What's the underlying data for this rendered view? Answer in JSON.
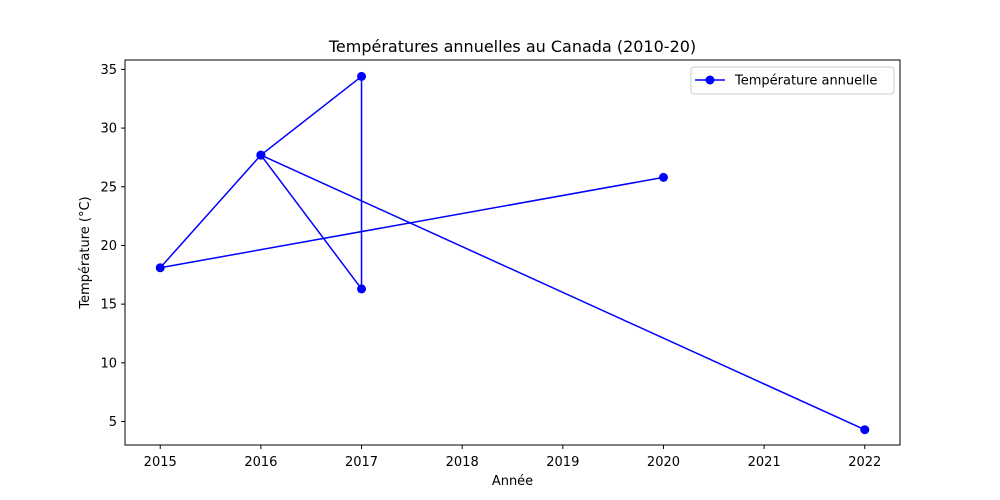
{
  "chart_data": {
    "type": "line",
    "title": "Températures annuelles au Canada (2010-20)",
    "xlabel": "Année",
    "ylabel": "Température (°C)",
    "xlim": [
      2014.65,
      2022.35
    ],
    "ylim": [
      3.0,
      35.8
    ],
    "xticks": [
      2015,
      2016,
      2017,
      2018,
      2019,
      2020,
      2021,
      2022
    ],
    "yticks": [
      5,
      10,
      15,
      20,
      25,
      30,
      35
    ],
    "grid": false,
    "legend_position": "top-right",
    "series": [
      {
        "name": "Température annuelle",
        "color": "#0000ff",
        "marker": "circle",
        "x": [
          2020,
          2015,
          2016,
          2017,
          2017,
          2016,
          2022
        ],
        "y": [
          25.8,
          18.1,
          27.7,
          34.4,
          16.3,
          27.7,
          4.3
        ]
      }
    ]
  }
}
